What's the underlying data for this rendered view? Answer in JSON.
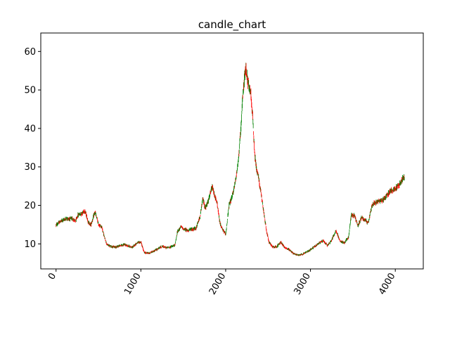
{
  "chart_data": {
    "type": "candlestick",
    "title": "candle_chart",
    "xlabel": "",
    "ylabel": "",
    "xlim": [
      -180,
      4330
    ],
    "ylim": [
      3.5,
      64.8
    ],
    "xticks": [
      0,
      1000,
      2000,
      3000,
      4000
    ],
    "yticks": [
      10,
      20,
      30,
      40,
      50,
      60
    ],
    "xtick_rotation": 60,
    "grid": false,
    "colors": {
      "up": "#008000",
      "down": "#ff0000"
    },
    "n_candles": 4108,
    "price_path": [
      [
        0,
        14.9
      ],
      [
        50,
        15.8
      ],
      [
        120,
        16.6
      ],
      [
        200,
        16.5
      ],
      [
        230,
        15.8
      ],
      [
        260,
        17.6
      ],
      [
        300,
        17.9
      ],
      [
        340,
        18.6
      ],
      [
        360,
        17.2
      ],
      [
        380,
        15.6
      ],
      [
        410,
        14.9
      ],
      [
        440,
        17.0
      ],
      [
        460,
        18.3
      ],
      [
        500,
        15.0
      ],
      [
        540,
        14.4
      ],
      [
        570,
        11.7
      ],
      [
        600,
        9.8
      ],
      [
        650,
        9.3
      ],
      [
        700,
        9.2
      ],
      [
        750,
        9.5
      ],
      [
        800,
        9.8
      ],
      [
        850,
        9.5
      ],
      [
        900,
        9.1
      ],
      [
        950,
        10.2
      ],
      [
        1000,
        10.5
      ],
      [
        1040,
        7.7
      ],
      [
        1100,
        7.6
      ],
      [
        1150,
        8.1
      ],
      [
        1200,
        8.7
      ],
      [
        1250,
        9.4
      ],
      [
        1300,
        9.0
      ],
      [
        1350,
        9.2
      ],
      [
        1400,
        9.6
      ],
      [
        1430,
        13.0
      ],
      [
        1470,
        14.5
      ],
      [
        1500,
        13.9
      ],
      [
        1550,
        13.5
      ],
      [
        1600,
        13.8
      ],
      [
        1650,
        14.0
      ],
      [
        1700,
        17.3
      ],
      [
        1730,
        21.8
      ],
      [
        1760,
        19.2
      ],
      [
        1800,
        21.5
      ],
      [
        1840,
        24.8
      ],
      [
        1870,
        22.5
      ],
      [
        1900,
        20.4
      ],
      [
        1930,
        15.6
      ],
      [
        1960,
        13.8
      ],
      [
        2000,
        12.5
      ],
      [
        2040,
        20.0
      ],
      [
        2080,
        22.5
      ],
      [
        2120,
        27.0
      ],
      [
        2150,
        32.0
      ],
      [
        2180,
        40.0
      ],
      [
        2200,
        48.0
      ],
      [
        2220,
        53.0
      ],
      [
        2240,
        55.5
      ],
      [
        2270,
        51.0
      ],
      [
        2300,
        48.5
      ],
      [
        2320,
        42.0
      ],
      [
        2340,
        33.5
      ],
      [
        2360,
        30.0
      ],
      [
        2390,
        27.0
      ],
      [
        2420,
        22.5
      ],
      [
        2450,
        18.0
      ],
      [
        2480,
        13.5
      ],
      [
        2510,
        10.5
      ],
      [
        2550,
        9.3
      ],
      [
        2600,
        9.2
      ],
      [
        2650,
        10.5
      ],
      [
        2700,
        9.0
      ],
      [
        2750,
        8.5
      ],
      [
        2800,
        7.5
      ],
      [
        2850,
        7.1
      ],
      [
        2900,
        7.3
      ],
      [
        2950,
        7.8
      ],
      [
        3000,
        8.5
      ],
      [
        3050,
        9.3
      ],
      [
        3100,
        10.2
      ],
      [
        3150,
        10.8
      ],
      [
        3200,
        9.6
      ],
      [
        3250,
        11.0
      ],
      [
        3300,
        13.5
      ],
      [
        3350,
        10.6
      ],
      [
        3400,
        10.3
      ],
      [
        3450,
        11.8
      ],
      [
        3480,
        17.6
      ],
      [
        3520,
        17.3
      ],
      [
        3560,
        14.6
      ],
      [
        3600,
        17.0
      ],
      [
        3640,
        16.2
      ],
      [
        3680,
        15.4
      ],
      [
        3720,
        19.6
      ],
      [
        3760,
        20.8
      ],
      [
        3800,
        21.0
      ],
      [
        3850,
        21.4
      ],
      [
        3900,
        22.6
      ],
      [
        3950,
        23.8
      ],
      [
        4000,
        24.3
      ],
      [
        4050,
        25.5
      ],
      [
        4100,
        27.3
      ]
    ]
  }
}
